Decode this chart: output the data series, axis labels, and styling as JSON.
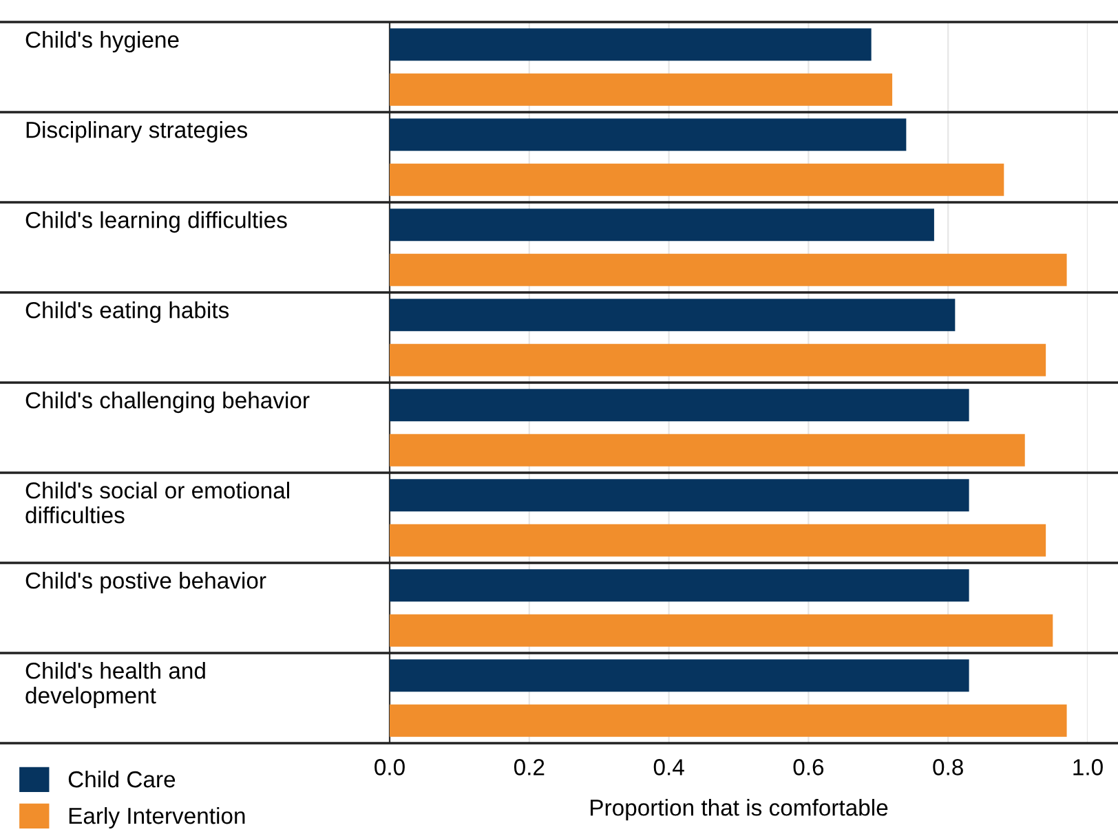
{
  "chart_data": {
    "type": "bar",
    "orientation": "horizontal",
    "xlabel": "Proportion that is comfortable",
    "categories": [
      "Child's hygiene",
      "Disciplinary strategies",
      "Child's learning difficulties",
      "Child's eating habits",
      "Child's challenging behavior",
      "Child's social or emotional\ndifficulties",
      "Child's postive behavior",
      "Child's health and\ndevelopment"
    ],
    "series": [
      {
        "name": "Child Care",
        "color": "#06345f",
        "values": [
          0.69,
          0.74,
          0.78,
          0.81,
          0.83,
          0.83,
          0.83,
          0.83
        ]
      },
      {
        "name": "Early Intervention",
        "color": "#f18e2c",
        "values": [
          0.72,
          0.88,
          0.97,
          0.94,
          0.91,
          0.94,
          0.95,
          0.97
        ]
      }
    ],
    "xlim": [
      0,
      1.0
    ],
    "xticks": [
      {
        "value": 0,
        "label": "0.0"
      },
      0.2,
      0.4,
      0.6,
      0.8,
      {
        "value": 1,
        "label": "1.0"
      }
    ],
    "grid": "x",
    "legend": "bottom left"
  }
}
